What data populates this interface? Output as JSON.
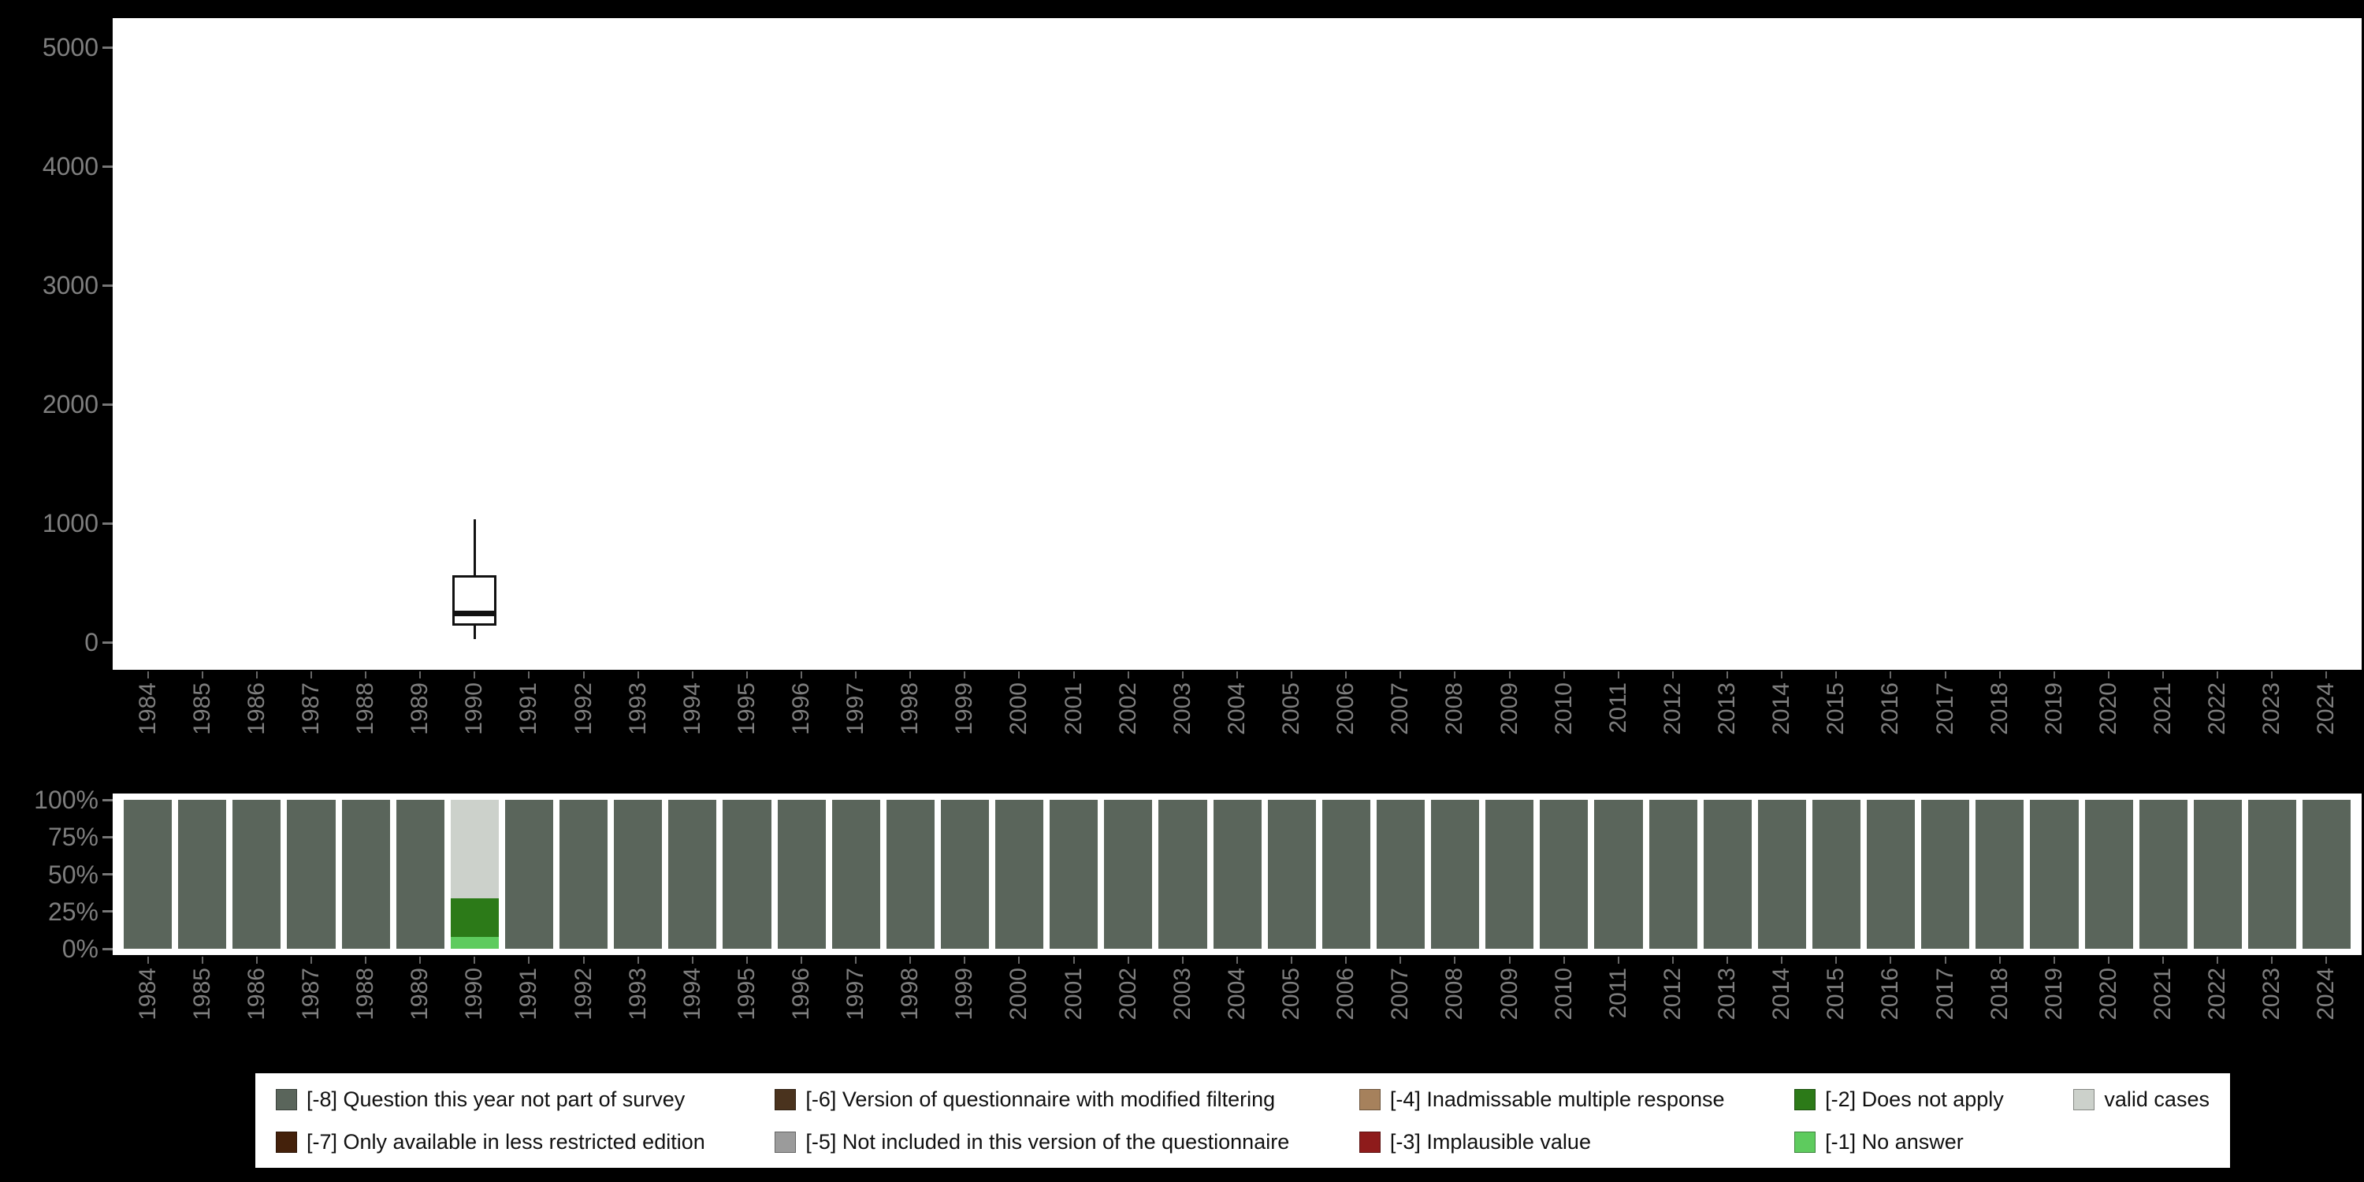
{
  "style": {
    "page_bg": "#000000",
    "panel_bg": "#ffffff",
    "axis_text_color": "#7e7e7e",
    "box_stroke": "#111111"
  },
  "chart_data": [
    {
      "type": "boxplot",
      "title": "",
      "xlabel": "",
      "ylabel": "",
      "ylim": [
        0,
        5000
      ],
      "yticks": [
        0,
        1000,
        2000,
        3000,
        4000,
        5000
      ],
      "grid": false,
      "series": [
        {
          "x": "1990",
          "min": 25,
          "q1": 140,
          "median": 240,
          "q3": 560,
          "max": 1030
        }
      ]
    },
    {
      "type": "bar",
      "subtype": "stacked-percent",
      "title": "",
      "xlabel": "",
      "ylabel": "",
      "ylim": [
        0,
        100
      ],
      "yticks": [
        {
          "label": "100%",
          "pct": 100
        },
        {
          "label": "75%",
          "pct": 75
        },
        {
          "label": "50%",
          "pct": 50
        },
        {
          "label": "25%",
          "pct": 25
        },
        {
          "label": "0%",
          "pct": 0
        }
      ],
      "categories": [
        "1984",
        "1985",
        "1986",
        "1987",
        "1988",
        "1989",
        "1990",
        "1991",
        "1992",
        "1993",
        "1994",
        "1995",
        "1996",
        "1997",
        "1998",
        "1999",
        "2000",
        "2001",
        "2002",
        "2003",
        "2004",
        "2005",
        "2006",
        "2007",
        "2008",
        "2009",
        "2010",
        "2011",
        "2012",
        "2013",
        "2014",
        "2015",
        "2016",
        "2017",
        "2018",
        "2019",
        "2020",
        "2021",
        "2022",
        "2023",
        "2024"
      ],
      "default_stack_top_to_bottom": [
        {
          "key": "-8",
          "pct": 100
        }
      ],
      "overrides_top_to_bottom": {
        "1990": [
          {
            "key": "valid",
            "pct": 66
          },
          {
            "key": "-2",
            "pct": 26
          },
          {
            "key": "-1",
            "pct": 8
          }
        ]
      }
    }
  ],
  "legend": {
    "colors": {
      "-8": "#5a655b",
      "-7": "#44210b",
      "-6": "#4a331e",
      "-5": "#9b9b9b",
      "-4": "#a6815c",
      "-3": "#8e1b1b",
      "-2": "#2c7a18",
      "-1": "#5ecb5e",
      "valid": "#ccd1cb"
    },
    "rows": [
      [
        {
          "key": "-8",
          "label": "[-8] Question this year not part of survey"
        },
        {
          "key": "-6",
          "label": "[-6] Version of questionnaire with modified filtering"
        },
        {
          "key": "-4",
          "label": "[-4] Inadmissable multiple response"
        },
        {
          "key": "-2",
          "label": "[-2] Does not apply"
        },
        {
          "key": "valid",
          "label": "valid cases"
        }
      ],
      [
        {
          "key": "-7",
          "label": "[-7] Only available in less restricted edition"
        },
        {
          "key": "-5",
          "label": "[-5] Not included in this version of the questionnaire"
        },
        {
          "key": "-3",
          "label": "[-3] Implausible value"
        },
        {
          "key": "-1",
          "label": "[-1] No answer"
        }
      ]
    ]
  }
}
